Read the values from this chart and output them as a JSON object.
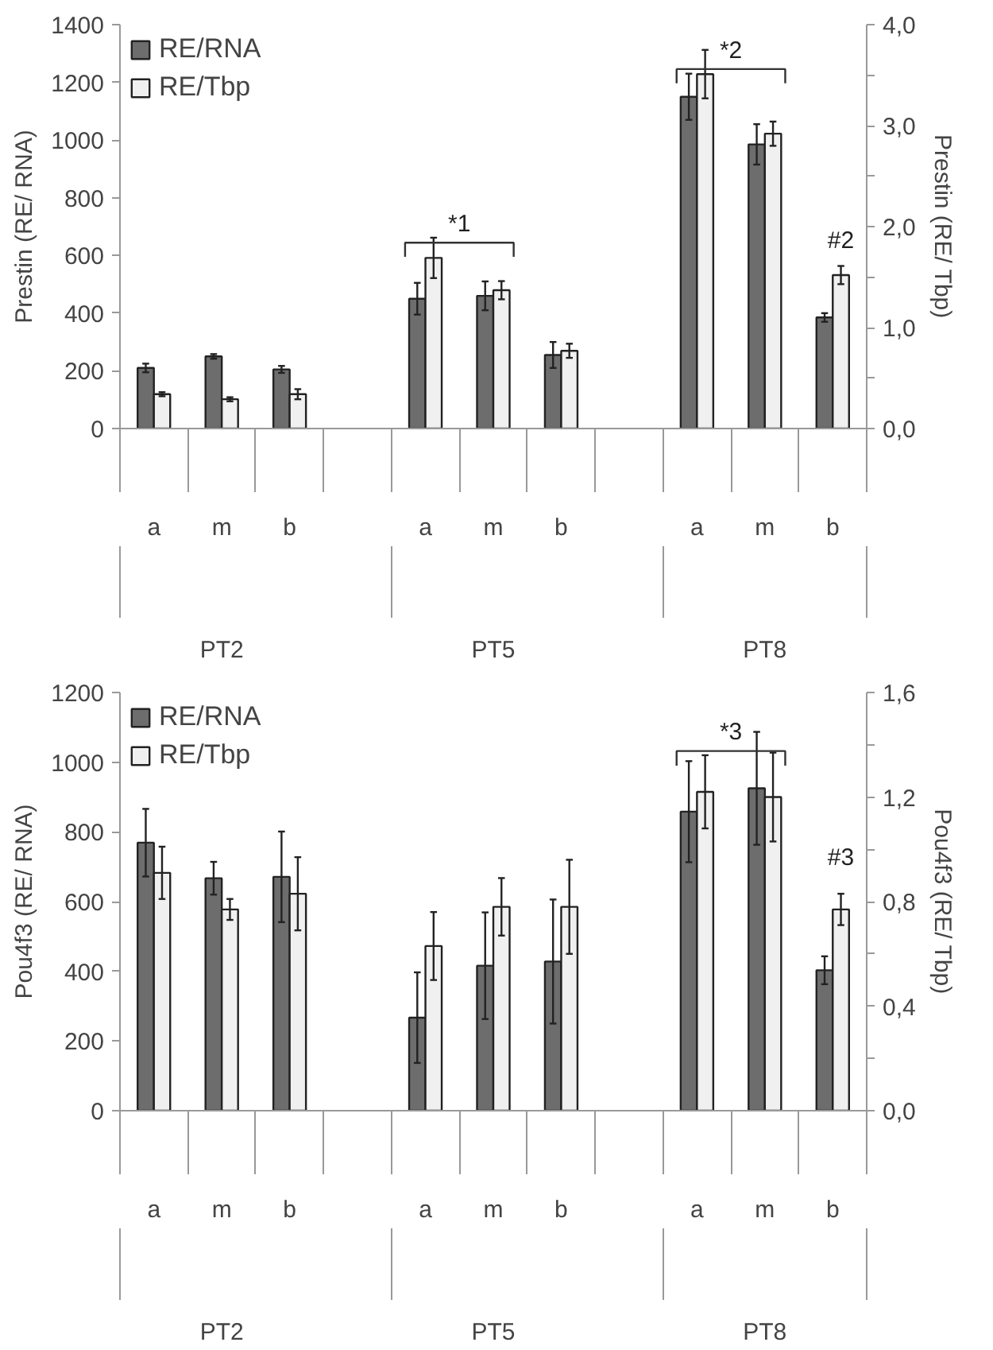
{
  "chart_data": [
    {
      "type": "bar",
      "categories": [
        "a",
        "m",
        "b",
        null,
        "a",
        "m",
        "b",
        null,
        "a",
        "m",
        "b"
      ],
      "ylabel": "Prestin (RE/ RNA)",
      "y2label": "Prestin (RE/ Tbp)",
      "ylim": [
        0,
        1400
      ],
      "yticks": [
        0,
        200,
        400,
        600,
        800,
        1000,
        1200,
        1400
      ],
      "y2lim": [
        0,
        4.0
      ],
      "y2ticks": [
        {
          "value": 0,
          "label": "0,0"
        },
        {
          "value": 0.5,
          "label": null
        },
        {
          "value": 1,
          "label": "1,0"
        },
        {
          "value": 1.5,
          "label": null
        },
        {
          "value": 2,
          "label": "2,0"
        },
        {
          "value": 2.5,
          "label": null
        },
        {
          "value": 3,
          "label": "3,0"
        },
        {
          "value": 3.5,
          "label": null
        },
        {
          "value": 4,
          "label": "4,0"
        }
      ],
      "legend": "top left",
      "grid": false,
      "series": [
        {
          "name": "RE/RNA",
          "color": "#6d6d6d",
          "values": [
            210,
            250,
            205,
            null,
            450,
            460,
            255,
            null,
            1150,
            985,
            385
          ],
          "errors": [
            15,
            8,
            12,
            null,
            55,
            50,
            45,
            null,
            80,
            70,
            15
          ]
        },
        {
          "name": "RE/Tbp",
          "color": "#f0f0f0",
          "axis": "y2",
          "values": [
            0.34,
            0.29,
            0.34,
            null,
            1.69,
            1.37,
            0.77,
            null,
            3.51,
            2.92,
            1.52
          ],
          "errors": [
            0.02,
            0.02,
            0.05,
            null,
            0.2,
            0.09,
            0.07,
            null,
            0.24,
            0.12,
            0.09
          ]
        }
      ],
      "annotations": [
        "PT2",
        "PT5",
        "PT8",
        "*1",
        "*2",
        "#2"
      ]
    },
    {
      "type": "bar",
      "categories": [
        "a",
        "m",
        "b",
        null,
        "a",
        "m",
        "b",
        null,
        "a",
        "m",
        "b"
      ],
      "ylabel": "Pou4f3 (RE/ RNA)",
      "y2label": "Pou4f3 (RE/ Tbp)",
      "ylim": [
        0,
        1200
      ],
      "yticks": [
        0,
        200,
        400,
        600,
        800,
        1000,
        1200
      ],
      "y2lim": [
        0,
        1.6
      ],
      "y2ticks": [
        {
          "value": 0,
          "label": "0,0"
        },
        {
          "value": 0.2,
          "label": null
        },
        {
          "value": 0.4,
          "label": "0,4"
        },
        {
          "value": 0.6,
          "label": null
        },
        {
          "value": 0.8,
          "label": "0,8"
        },
        {
          "value": 1.0,
          "label": null
        },
        {
          "value": 1.2,
          "label": "1,2"
        },
        {
          "value": 1.4,
          "label": null
        },
        {
          "value": 1.6,
          "label": "1,6"
        }
      ],
      "legend": "top left",
      "grid": false,
      "series": [
        {
          "name": "RE/RNA",
          "color": "#6d6d6d",
          "values": [
            769,
            667,
            671,
            null,
            267,
            416,
            428,
            null,
            858,
            925,
            403
          ],
          "errors": [
            97,
            47,
            130,
            null,
            130,
            153,
            178,
            null,
            145,
            162,
            40
          ]
        },
        {
          "name": "RE/Tbp",
          "color": "#f0f0f0",
          "axis": "y2",
          "values": [
            0.91,
            0.77,
            0.83,
            null,
            0.63,
            0.78,
            0.78,
            null,
            1.22,
            1.2,
            0.77
          ],
          "errors": [
            0.1,
            0.04,
            0.14,
            null,
            0.13,
            0.11,
            0.18,
            null,
            0.14,
            0.17,
            0.06
          ]
        }
      ],
      "annotations": [
        "PT2",
        "PT5",
        "PT8",
        "*3",
        "#3"
      ]
    }
  ]
}
